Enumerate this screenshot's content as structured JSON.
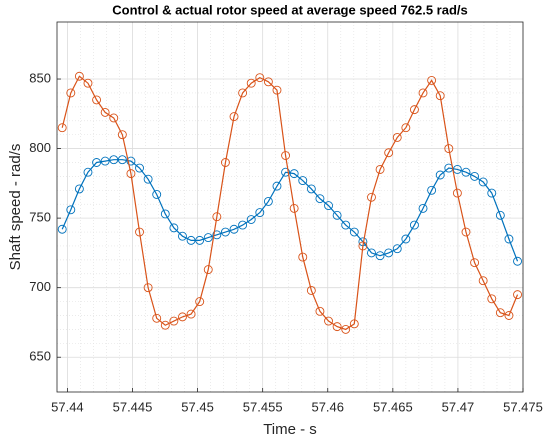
{
  "chart_data": {
    "type": "line",
    "title": "Control & actual rotor speed at average speed 762.5 rad/s",
    "xlabel": "Time - s",
    "ylabel": "Shaft speed - rad/s",
    "x": [
      57.4396,
      57.44026,
      57.44092,
      57.44158,
      57.44224,
      57.4429,
      57.44356,
      57.44422,
      57.44488,
      57.44554,
      57.4462,
      57.44686,
      57.44752,
      57.44818,
      57.44884,
      57.4495,
      57.45016,
      57.45082,
      57.45148,
      57.45214,
      57.4528,
      57.45346,
      57.45412,
      57.45478,
      57.45544,
      57.4561,
      57.45676,
      57.45742,
      57.45808,
      57.45874,
      57.4594,
      57.46006,
      57.46072,
      57.46138,
      57.46204,
      57.4627,
      57.46336,
      57.46402,
      57.46468,
      57.46534,
      57.466,
      57.46666,
      57.46732,
      57.46798,
      57.46864,
      57.4693,
      57.46996,
      57.47062,
      57.47128,
      57.47194,
      57.4726,
      57.47326,
      57.47392,
      57.47458
    ],
    "series": [
      {
        "color": "#0072bd",
        "values": [
          742,
          756,
          771,
          783,
          790,
          791,
          792,
          792,
          791,
          786,
          778,
          767,
          753,
          743,
          737,
          734,
          734,
          736,
          738,
          740,
          742,
          745,
          749,
          754,
          762,
          773,
          783,
          782,
          777,
          771,
          764,
          759,
          752,
          745,
          740,
          733,
          725,
          723,
          725,
          728,
          735,
          745,
          757,
          770,
          781,
          786,
          785,
          783,
          780,
          776,
          768,
          752,
          735,
          719
        ]
      },
      {
        "color": "#d95319",
        "values": [
          815,
          840,
          852,
          847,
          835,
          826,
          822,
          810,
          782,
          740,
          700,
          678,
          673,
          676,
          679,
          681,
          690,
          713,
          751,
          790,
          823,
          840,
          847,
          851,
          848,
          842,
          795,
          757,
          722,
          698,
          683,
          676,
          672,
          670,
          674,
          730,
          765,
          785,
          797,
          808,
          815,
          828,
          840,
          849,
          838,
          800,
          768,
          740,
          718,
          705,
          692,
          682,
          680,
          695
        ]
      }
    ],
    "xlim": [
      57.4392,
      57.475
    ],
    "xticks": [
      57.44,
      57.445,
      57.45,
      57.455,
      57.46,
      57.465,
      57.47,
      57.475
    ],
    "ylim": [
      625,
      891
    ],
    "yticks": [
      650,
      700,
      750,
      800,
      850
    ],
    "grid": true,
    "minor_grid": true,
    "marker": "circle"
  }
}
